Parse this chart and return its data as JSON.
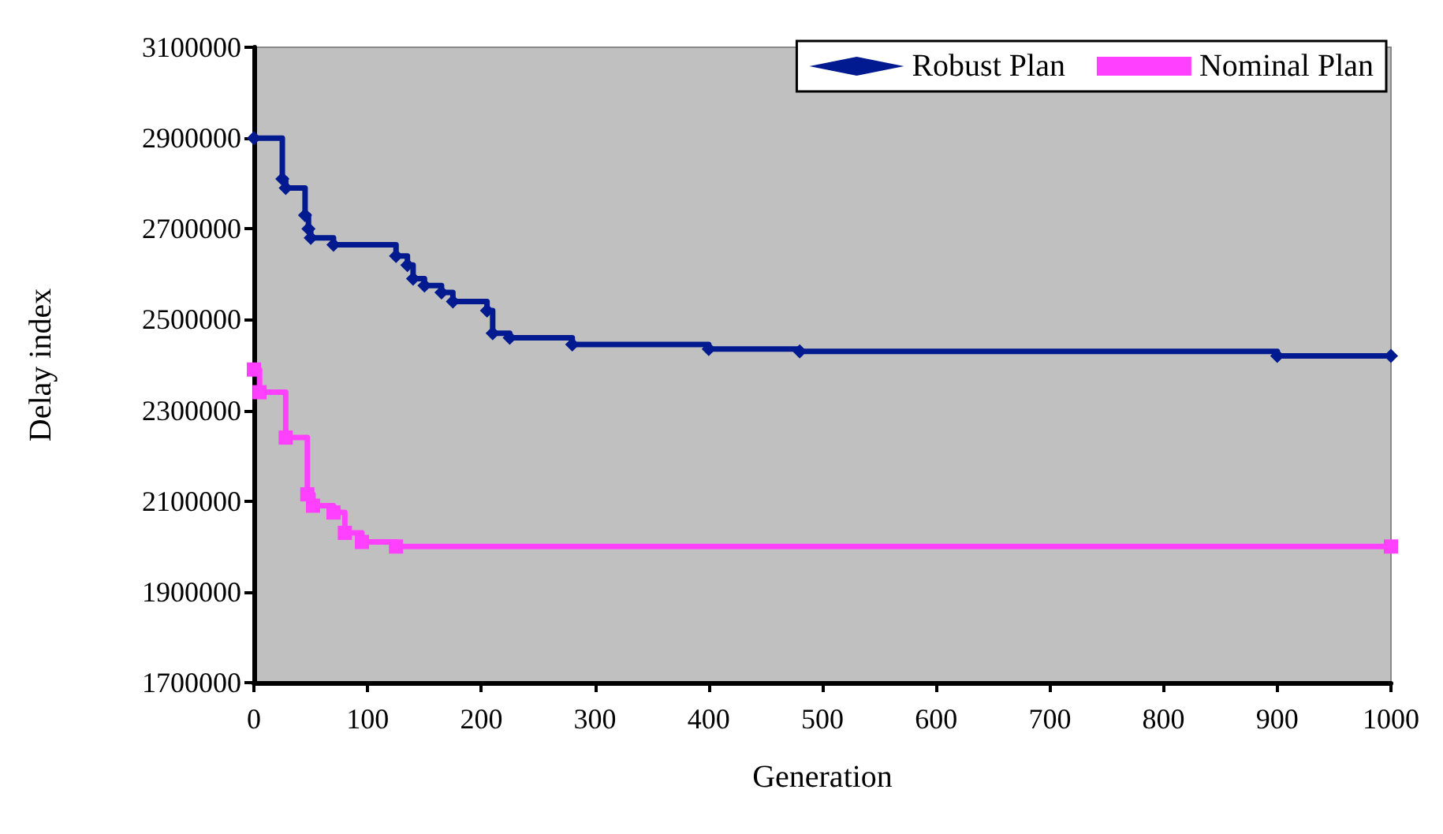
{
  "chart_data": {
    "type": "step",
    "xlabel": "Generation",
    "ylabel": "Delay index",
    "xlim": [
      0,
      1000
    ],
    "xticks": [
      0,
      100,
      200,
      300,
      400,
      500,
      600,
      700,
      800,
      900,
      1000
    ],
    "ylim": [
      1700000,
      3100000
    ],
    "yticks": [
      1700000,
      1900000,
      2100000,
      2300000,
      2500000,
      2700000,
      2900000,
      3100000
    ],
    "grid": false,
    "legend": "top right",
    "line_style": "solid",
    "series": [
      {
        "name": "Robust Plan",
        "color": "#021a8f",
        "marker": "diamond",
        "x": [
          0,
          25,
          28,
          45,
          48,
          50,
          70,
          125,
          135,
          140,
          150,
          165,
          175,
          205,
          210,
          225,
          280,
          400,
          480,
          900,
          1000
        ],
        "values": [
          2900000,
          2810000,
          2790000,
          2730000,
          2700000,
          2680000,
          2665000,
          2640000,
          2620000,
          2590000,
          2575000,
          2560000,
          2540000,
          2520000,
          2470000,
          2460000,
          2445000,
          2435000,
          2430000,
          2420000,
          2420000
        ]
      },
      {
        "name": "Nominal Plan",
        "color": "#ff40ff",
        "marker": "square",
        "x": [
          0,
          5,
          28,
          47,
          52,
          70,
          80,
          95,
          125,
          1000
        ],
        "values": [
          2390000,
          2340000,
          2240000,
          2115000,
          2090000,
          2075000,
          2030000,
          2010000,
          2000000,
          2000000
        ]
      }
    ]
  }
}
